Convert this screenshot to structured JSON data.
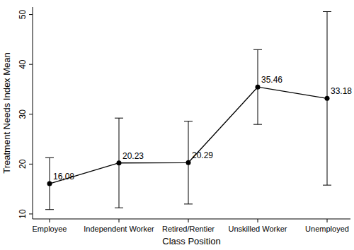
{
  "chart_data": {
    "type": "line",
    "x_label": "Class Position",
    "y_label": "Treatment Needs Index Mean",
    "categories": [
      "Employee",
      "Independent Worker",
      "Retired/Rentier",
      "Unskilled Worker",
      "Unemployed"
    ],
    "values": [
      16.08,
      20.23,
      20.29,
      35.46,
      33.18
    ],
    "value_labels": [
      "16,08",
      "20.23",
      "20.29",
      "35.46",
      "33.18"
    ],
    "errors": [
      5.2,
      9.0,
      8.3,
      7.5,
      17.4
    ],
    "color": "#000000",
    "marker": "circle",
    "line_style": "solid",
    "data_labels": true,
    "grid": false,
    "ylim": [
      9,
      51.5
    ],
    "yticks": [
      10,
      20,
      30,
      40,
      50
    ]
  }
}
